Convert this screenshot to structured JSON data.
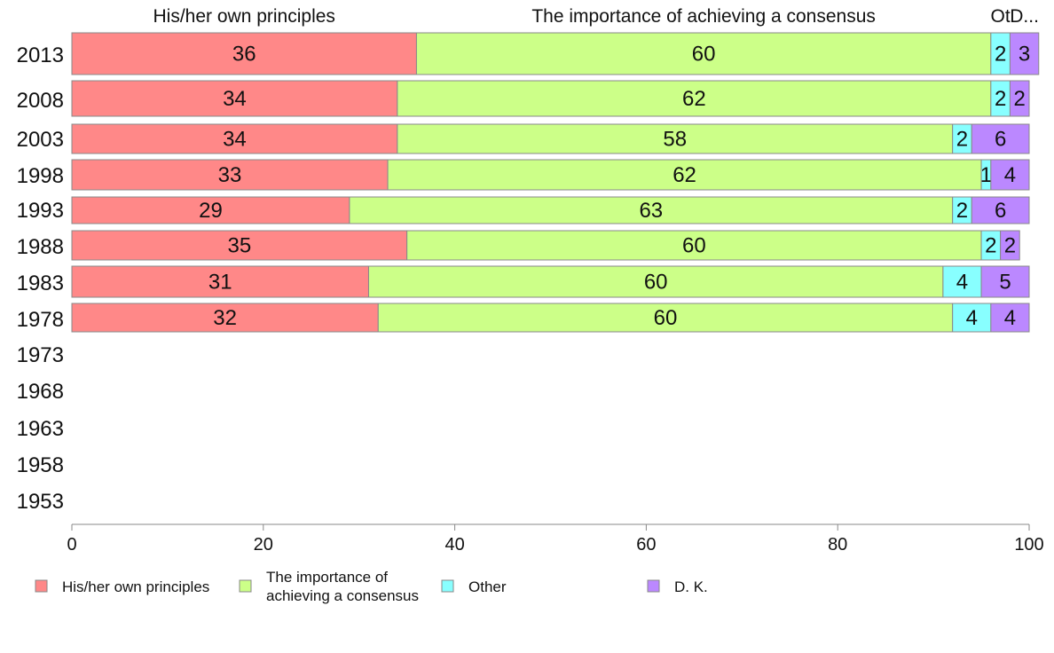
{
  "chart_data": {
    "type": "bar",
    "orientation": "horizontal",
    "stacked": true,
    "categories": [
      "2013",
      "2008",
      "2003",
      "1998",
      "1993",
      "1988",
      "1983",
      "1978",
      "1973",
      "1968",
      "1963",
      "1958",
      "1953"
    ],
    "series": [
      {
        "name": "His/her own principles",
        "color": "#ff8888",
        "values": [
          36,
          34,
          34,
          33,
          29,
          35,
          31,
          32,
          null,
          null,
          null,
          null,
          null
        ]
      },
      {
        "name": "The importance of achieving a consensus",
        "color": "#ccff88",
        "values": [
          60,
          62,
          58,
          62,
          63,
          60,
          60,
          60,
          null,
          null,
          null,
          null,
          null
        ]
      },
      {
        "name": "Other",
        "color": "#88ffff",
        "values": [
          2,
          2,
          2,
          1,
          2,
          2,
          4,
          4,
          null,
          null,
          null,
          null,
          null
        ]
      },
      {
        "name": "D. K.",
        "color": "#bb88ff",
        "values": [
          3,
          2,
          6,
          4,
          6,
          2,
          5,
          4,
          null,
          null,
          null,
          null,
          null
        ]
      }
    ],
    "column_headers": [
      "His/her own principles",
      "The importance of achieving a consensus",
      "Ot",
      "D..."
    ],
    "legend_labels": [
      [
        "His/her own principles"
      ],
      [
        "The importance of",
        "achieving a consensus"
      ],
      [
        "Other"
      ],
      [
        "D. K."
      ]
    ],
    "xlim": [
      0,
      100
    ],
    "xticks": [
      0,
      20,
      40,
      60,
      80,
      100
    ],
    "legend_position": "bottom",
    "grid": false
  }
}
